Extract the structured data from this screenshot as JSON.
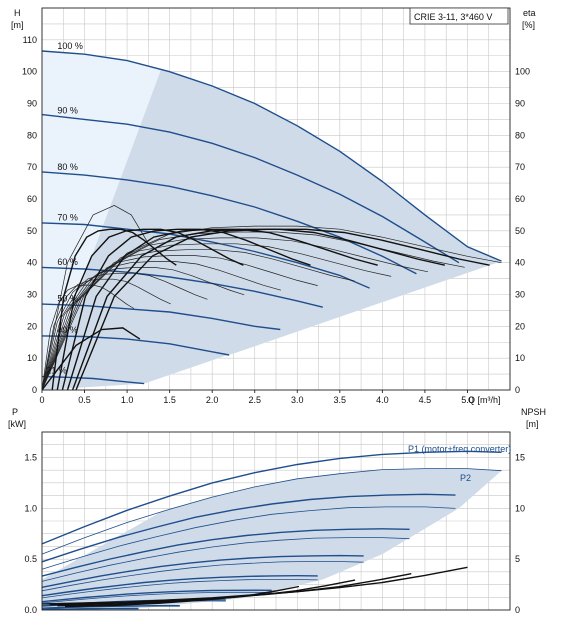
{
  "chart_data": [
    {
      "type": "line",
      "title": "CRIE 3-11, 3*460 V",
      "ylabel_left": [
        "H",
        "[m]"
      ],
      "ylabel_right": [
        "eta",
        "[%]"
      ],
      "xlabel": "Q [m³/h]",
      "x_ticks": [
        "0",
        "0.5",
        "1.0",
        "1.5",
        "2.0",
        "2.5",
        "3.0",
        "3.5",
        "4.0",
        "4.5",
        "5.0"
      ],
      "y_ticks": [
        "0",
        "10",
        "20",
        "30",
        "40",
        "50",
        "60",
        "70",
        "80",
        "90",
        "100",
        "110"
      ],
      "y_right_ticks": [
        "0",
        "10",
        "20",
        "30",
        "40",
        "50",
        "60",
        "70",
        "80",
        "90",
        "100"
      ],
      "xlim": [
        0,
        5.5
      ],
      "ylim": [
        0,
        120
      ],
      "grid": true,
      "speed_curves": [
        {
          "name": "100 %",
          "points": [
            [
              0,
              106.5
            ],
            [
              0.5,
              105.5
            ],
            [
              1.0,
              103.5
            ],
            [
              1.5,
              100.0
            ],
            [
              2.0,
              95.5
            ],
            [
              2.5,
              90.0
            ],
            [
              3.0,
              83.0
            ],
            [
              3.5,
              75.0
            ],
            [
              4.0,
              65.5
            ],
            [
              4.5,
              55.0
            ],
            [
              5.0,
              45.0
            ],
            [
              5.4,
              40.5
            ]
          ]
        },
        {
          "name": "90 %",
          "points": [
            [
              0,
              86.5
            ],
            [
              0.5,
              85.0
            ],
            [
              1.0,
              83.5
            ],
            [
              1.5,
              81.0
            ],
            [
              2.0,
              77.5
            ],
            [
              2.5,
              73.0
            ],
            [
              3.0,
              67.5
            ],
            [
              3.5,
              61.5
            ],
            [
              4.0,
              54.5
            ],
            [
              4.5,
              46.5
            ],
            [
              4.9,
              40.0
            ]
          ]
        },
        {
          "name": "80 %",
          "points": [
            [
              0,
              68.5
            ],
            [
              0.5,
              67.5
            ],
            [
              1.0,
              66.0
            ],
            [
              1.5,
              64.0
            ],
            [
              2.0,
              61.0
            ],
            [
              2.5,
              57.5
            ],
            [
              3.0,
              53.0
            ],
            [
              3.5,
              48.0
            ],
            [
              4.0,
              42.0
            ],
            [
              4.4,
              36.5
            ]
          ]
        },
        {
          "name": "70 %",
          "points": [
            [
              0,
              52.5
            ],
            [
              0.5,
              52.0
            ],
            [
              1.0,
              50.5
            ],
            [
              1.5,
              49.0
            ],
            [
              2.0,
              46.5
            ],
            [
              2.5,
              43.5
            ],
            [
              3.0,
              40.0
            ],
            [
              3.5,
              36.0
            ],
            [
              3.85,
              32.0
            ]
          ]
        },
        {
          "name": "60 %",
          "points": [
            [
              0,
              38.5
            ],
            [
              0.5,
              38.0
            ],
            [
              1.0,
              37.0
            ],
            [
              1.5,
              35.5
            ],
            [
              2.0,
              33.5
            ],
            [
              2.5,
              31.0
            ],
            [
              3.0,
              28.0
            ],
            [
              3.3,
              26.0
            ]
          ]
        },
        {
          "name": "50 %",
          "points": [
            [
              0,
              27.0
            ],
            [
              0.5,
              26.5
            ],
            [
              1.0,
              25.5
            ],
            [
              1.5,
              24.5
            ],
            [
              2.0,
              22.5
            ],
            [
              2.5,
              20.0
            ],
            [
              2.8,
              19.0
            ]
          ]
        },
        {
          "name": "40 %",
          "points": [
            [
              0,
              17.0
            ],
            [
              0.5,
              16.8
            ],
            [
              1.0,
              16.0
            ],
            [
              1.5,
              14.5
            ],
            [
              2.0,
              12.0
            ],
            [
              2.2,
              11.0
            ]
          ]
        },
        {
          "name": "21 %",
          "points": [
            [
              0,
              4.2
            ],
            [
              0.3,
              4.0
            ],
            [
              0.6,
              3.6
            ],
            [
              0.9,
              2.8
            ],
            [
              1.2,
              2.0
            ]
          ]
        }
      ],
      "efficiency_peak": [
        [
          0,
          0
        ],
        [
          0.5,
          30
        ],
        [
          1.0,
          43
        ],
        [
          1.5,
          49
        ],
        [
          2.0,
          51
        ],
        [
          2.5,
          51.5
        ],
        [
          3.0,
          51.5
        ],
        [
          3.5,
          50.5
        ],
        [
          4.0,
          48.0
        ],
        [
          4.5,
          45.0
        ],
        [
          5.0,
          42.0
        ],
        [
          5.4,
          40.0
        ]
      ]
    },
    {
      "type": "line",
      "ylabel_left": [
        "P",
        "[kW]"
      ],
      "ylabel_right": [
        "NPSH",
        "[m]"
      ],
      "y_ticks": [
        "0.0",
        "0.5",
        "1.0",
        "1.5"
      ],
      "y_right_ticks": [
        "0",
        "5",
        "10",
        "15"
      ],
      "xlim": [
        0,
        5.5
      ],
      "ylim": [
        0,
        1.75
      ],
      "series_labels": [
        "P1 (motor+freq.converter)",
        "P2"
      ],
      "power_p1_100": [
        [
          0,
          0.65
        ],
        [
          0.5,
          0.82
        ],
        [
          1.0,
          0.98
        ],
        [
          1.5,
          1.12
        ],
        [
          2.0,
          1.25
        ],
        [
          2.5,
          1.35
        ],
        [
          3.0,
          1.43
        ],
        [
          3.5,
          1.49
        ],
        [
          4.0,
          1.53
        ],
        [
          4.5,
          1.55
        ],
        [
          5.0,
          1.56
        ],
        [
          5.4,
          1.55
        ]
      ],
      "power_p2_100": [
        [
          0,
          0.55
        ],
        [
          0.5,
          0.71
        ],
        [
          1.0,
          0.86
        ],
        [
          1.5,
          0.99
        ],
        [
          2.0,
          1.11
        ],
        [
          2.5,
          1.21
        ],
        [
          3.0,
          1.29
        ],
        [
          3.5,
          1.34
        ],
        [
          4.0,
          1.38
        ],
        [
          4.5,
          1.39
        ],
        [
          5.0,
          1.39
        ],
        [
          5.4,
          1.37
        ]
      ],
      "npsh": [
        [
          0,
          0.6
        ],
        [
          1.0,
          0.8
        ],
        [
          2.0,
          1.2
        ],
        [
          3.0,
          1.8
        ],
        [
          3.5,
          2.2
        ],
        [
          4.0,
          2.7
        ],
        [
          4.5,
          3.4
        ],
        [
          5.0,
          4.2
        ]
      ]
    }
  ]
}
